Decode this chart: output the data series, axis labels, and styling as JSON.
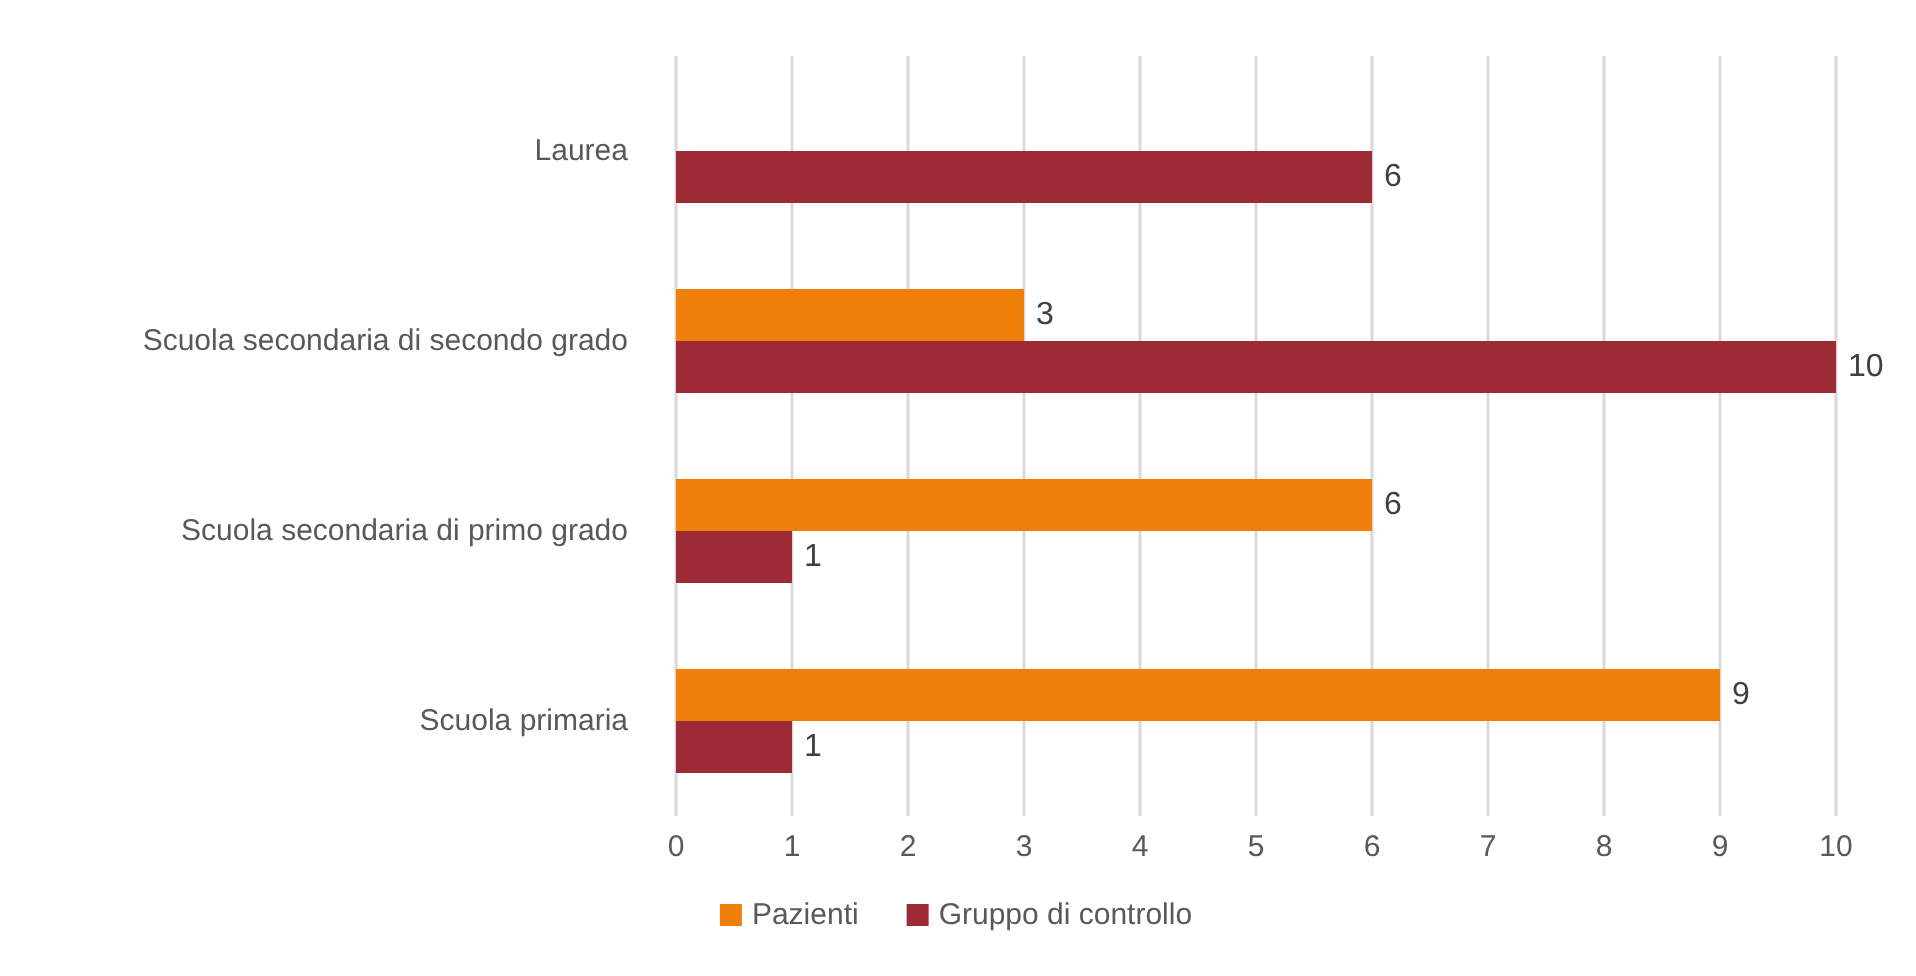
{
  "chart_data": {
    "type": "bar",
    "orientation": "horizontal",
    "categories": [
      "Laurea",
      "Scuola secondaria di secondo grado",
      "Scuola secondaria di primo grado",
      "Scuola primaria"
    ],
    "series": [
      {
        "name": "Pazienti",
        "color": "#f07f09",
        "values": [
          null,
          3,
          6,
          9
        ]
      },
      {
        "name": "Gruppo di controllo",
        "color": "#9e2a36",
        "values": [
          6,
          10,
          1,
          1
        ]
      }
    ],
    "xlim": [
      0,
      10
    ],
    "xticks": [
      0,
      1,
      2,
      3,
      4,
      5,
      6,
      7,
      8,
      9,
      10
    ],
    "grid": "x",
    "legend": "bottom",
    "data_labels": true
  }
}
